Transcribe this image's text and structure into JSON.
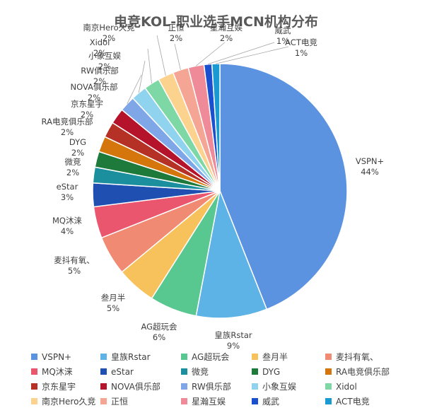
{
  "chart_data": {
    "type": "pie",
    "title": "电竞KOL-职业选手MCN机构分布",
    "legend_position": "bottom",
    "slices": [
      {
        "name": "VSPN+",
        "value": 44,
        "label": "44%",
        "color": "#5b93e0"
      },
      {
        "name": "皇族Rstar",
        "value": 9,
        "label": "9%",
        "color": "#5db2e6"
      },
      {
        "name": "AG超玩会",
        "value": 6,
        "label": "6%",
        "color": "#58c790"
      },
      {
        "name": "叁月半",
        "value": 5,
        "label": "5%",
        "color": "#f7c25b"
      },
      {
        "name": "麦抖有氧、",
        "value": 5,
        "label": "5%",
        "color": "#f08a72"
      },
      {
        "name": "MQ沐涞",
        "value": 4,
        "label": "4%",
        "color": "#e9566e"
      },
      {
        "name": "eStar",
        "value": 3,
        "label": "3%",
        "color": "#1f4fb0"
      },
      {
        "name": "微竞",
        "value": 2,
        "label": "2%",
        "color": "#1c8f9e"
      },
      {
        "name": "DYG",
        "value": 2,
        "label": "2%",
        "color": "#1e7a3a"
      },
      {
        "name": "RA电竞俱乐部",
        "value": 2,
        "label": "2%",
        "color": "#d4760b"
      },
      {
        "name": "京东星宇",
        "value": 2,
        "label": "2%",
        "color": "#b53025"
      },
      {
        "name": "NOVA俱乐部",
        "value": 2,
        "label": "2%",
        "color": "#b5132c"
      },
      {
        "name": "RW俱乐部",
        "value": 2,
        "label": "2%",
        "color": "#7fa6e6"
      },
      {
        "name": "小象互娱",
        "value": 2,
        "label": "2%",
        "color": "#8fd3ee"
      },
      {
        "name": "Xidol",
        "value": 2,
        "label": "2%",
        "color": "#7ed8a6"
      },
      {
        "name": "南京Hero久竞",
        "value": 2,
        "label": "2%",
        "color": "#fbd38e"
      },
      {
        "name": "正恒",
        "value": 2,
        "label": "2%",
        "color": "#f5a594"
      },
      {
        "name": "星瀚互娱",
        "value": 2,
        "label": "2%",
        "color": "#ef8a99"
      },
      {
        "name": "威武",
        "value": 1,
        "label": "1%",
        "color": "#1a4fd0"
      },
      {
        "name": "ACT电竞",
        "value": 1,
        "label": "1%",
        "color": "#199ad3"
      }
    ]
  }
}
